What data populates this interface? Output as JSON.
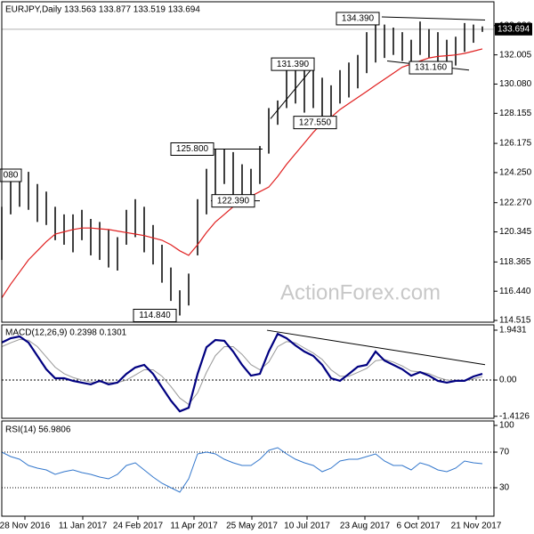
{
  "chart_data": [
    {
      "type": "price-bars",
      "title": "EURJPY,Daily 133.563 133.877 133.519 133.694",
      "last_price": {
        "value": 133.694,
        "label": "133.694"
      },
      "watermark": "ActionForex.com",
      "xlim": [
        0,
        55.3
      ],
      "xticks": [
        {
          "value": 2.6,
          "label": "28 Nov 2016"
        },
        {
          "value": 9.1,
          "label": "11 Jan 2017"
        },
        {
          "value": 15.3,
          "label": "24 Feb 2017"
        },
        {
          "value": 21.6,
          "label": "11 Apr 2017"
        },
        {
          "value": 28.1,
          "label": "25 May 2017"
        },
        {
          "value": 34.3,
          "label": "10 Jul 2017"
        },
        {
          "value": 40.8,
          "label": "23 Aug 2017"
        },
        {
          "value": 46.8,
          "label": "6 Oct 2017"
        },
        {
          "value": 53.3,
          "label": "21 Nov 2017"
        }
      ],
      "ylim": [
        114.4,
        135.5
      ],
      "yticks": [
        {
          "value": 114.515,
          "label": "114.515"
        },
        {
          "value": 116.44,
          "label": "116.440"
        },
        {
          "value": 118.365,
          "label": "118.365"
        },
        {
          "value": 120.345,
          "label": "120.345"
        },
        {
          "value": 122.27,
          "label": "122.270"
        },
        {
          "value": 124.25,
          "label": "124.250"
        },
        {
          "value": 126.175,
          "label": "126.175"
        },
        {
          "value": 128.155,
          "label": "128.155"
        },
        {
          "value": 130.08,
          "label": "130.080"
        },
        {
          "value": 132.005,
          "label": "132.005"
        },
        {
          "value": 133.93,
          "label": "133.930"
        }
      ],
      "high": [
        122.0,
        124.2,
        124.5,
        124.3,
        123.5,
        123.0,
        122.0,
        121.5,
        121.5,
        121.8,
        121.2,
        121.0,
        120.5,
        120.0,
        121.8,
        122.5,
        122.0,
        120.8,
        119.5,
        118.0,
        116.5,
        117.6,
        122.5,
        124.5,
        125.8,
        125.8,
        125.6,
        124.8,
        124.5,
        126.0,
        128.5,
        129.0,
        131.2,
        131.39,
        131.0,
        131.0,
        130.5,
        130.0,
        131.0,
        131.5,
        132.0,
        133.5,
        134.39,
        134.0,
        133.8,
        133.5,
        133.0,
        134.2,
        133.7,
        133.5,
        133.0,
        133.2,
        134.1,
        134.0,
        133.877
      ],
      "low": [
        118.5,
        121.5,
        122.0,
        121.8,
        121.0,
        120.8,
        119.8,
        119.5,
        119.0,
        119.8,
        118.8,
        118.5,
        118.0,
        117.8,
        119.5,
        120.0,
        119.0,
        118.2,
        117.0,
        115.8,
        114.84,
        115.5,
        118.8,
        121.5,
        122.8,
        123.5,
        122.8,
        122.4,
        122.39,
        123.5,
        125.5,
        127.4,
        128.5,
        128.8,
        128.2,
        128.5,
        127.55,
        127.6,
        128.8,
        129.2,
        129.8,
        130.8,
        131.5,
        131.8,
        132.0,
        131.6,
        131.16,
        132.0,
        131.8,
        131.5,
        131.4,
        131.3,
        132.2,
        132.8,
        133.519
      ],
      "bar_color": "#000000",
      "ma": {
        "color": "#e02020",
        "values": [
          116.0,
          116.9,
          117.7,
          118.5,
          119.1,
          119.7,
          120.2,
          120.35,
          120.5,
          120.6,
          120.6,
          120.55,
          120.5,
          120.4,
          120.3,
          120.2,
          120.1,
          119.95,
          119.8,
          119.5,
          119.1,
          118.8,
          119.5,
          120.3,
          121.0,
          121.5,
          122.0,
          122.5,
          122.7,
          123.0,
          123.3,
          124.0,
          124.8,
          125.5,
          126.2,
          126.9,
          127.5,
          127.9,
          128.4,
          128.8,
          129.2,
          129.6,
          130.0,
          130.4,
          130.8,
          131.2,
          131.4,
          131.6,
          131.8,
          131.9,
          131.95,
          132.0,
          132.1,
          132.25,
          132.4
        ]
      },
      "trendlines": [
        {
          "x": [
            42.7,
            54.3
          ],
          "y": [
            134.5,
            134.3
          ]
        },
        {
          "x": [
            43.3,
            52.5
          ],
          "y": [
            131.6,
            131.0
          ]
        },
        {
          "x": [
            23.8,
            29.3
          ],
          "y": [
            125.8,
            125.8
          ]
        },
        {
          "x": [
            23.5,
            29.0
          ],
          "y": [
            122.39,
            122.39
          ]
        },
        {
          "x": [
            30.2,
            35.0
          ],
          "y": [
            127.8,
            131.2
          ]
        }
      ],
      "annotations": [
        {
          "label": "134.390",
          "value": 134.39
        },
        {
          "label": "131.390",
          "value": 131.39
        },
        {
          "label": "131.160",
          "value": 131.16
        },
        {
          "label": "127.550",
          "value": 127.55
        },
        {
          "label": "125.800",
          "value": 125.8
        },
        {
          "label": "122.390",
          "value": 122.39
        },
        {
          "label": "114.840",
          "value": 114.84
        },
        {
          "label": "080"
        }
      ]
    },
    {
      "type": "macd",
      "title": "MACD(12,26,9) 0.2398 0.1301",
      "xlim": [
        0,
        55.3
      ],
      "ylim": [
        -1.49,
        2.15
      ],
      "yticks": [
        1.9431,
        {
          "value": 0,
          "label": "0.00"
        },
        -1.4126
      ],
      "series": [
        {
          "color": "#000080",
          "values": [
            1.46,
            1.63,
            1.7,
            1.46,
            0.94,
            0.42,
            0.07,
            0.07,
            -0.03,
            -0.1,
            -0.17,
            -0.03,
            -0.17,
            -0.1,
            0.24,
            0.49,
            0.59,
            0.24,
            -0.28,
            -0.8,
            -1.22,
            -1.08,
            0.24,
            1.28,
            1.56,
            1.53,
            1.11,
            0.59,
            0.17,
            0.24,
            1.11,
            1.8,
            1.63,
            1.35,
            1.11,
            0.94,
            0.59,
            0.07,
            -0.03,
            0.24,
            0.52,
            0.59,
            1.11,
            0.76,
            0.59,
            0.42,
            0.17,
            0.31,
            0.17,
            -0.03,
            -0.1,
            -0.03,
            -0.03,
            0.14,
            0.2398
          ]
        },
        {
          "color": "#999999",
          "values": [
            1.3,
            1.45,
            1.58,
            1.55,
            1.3,
            0.9,
            0.5,
            0.25,
            0.1,
            0.0,
            -0.08,
            -0.08,
            -0.1,
            -0.1,
            0.0,
            0.2,
            0.4,
            0.4,
            0.15,
            -0.25,
            -0.7,
            -0.95,
            -0.5,
            0.3,
            0.95,
            1.3,
            1.3,
            1.0,
            0.6,
            0.4,
            0.7,
            1.3,
            1.5,
            1.45,
            1.25,
            1.05,
            0.8,
            0.4,
            0.15,
            0.15,
            0.3,
            0.45,
            0.75,
            0.8,
            0.7,
            0.55,
            0.35,
            0.32,
            0.25,
            0.1,
            0.0,
            -0.03,
            -0.03,
            0.05,
            0.1301
          ]
        }
      ],
      "trendlines": [
        {
          "x": [
            29.8,
            54.3
          ],
          "y": [
            1.94,
            0.6
          ]
        }
      ]
    },
    {
      "type": "rsi",
      "title": "RSI(14) 56.9806",
      "xlim": [
        0,
        55.3
      ],
      "ylim": [
        -2,
        105
      ],
      "yticks": [
        30,
        70,
        100
      ],
      "levels": [
        30,
        70
      ],
      "color": "#3377cc",
      "values": [
        70,
        65,
        62,
        55,
        52,
        50,
        45,
        48,
        50,
        47,
        45,
        42,
        40,
        45,
        55,
        58,
        50,
        42,
        35,
        30,
        25,
        40,
        68,
        70,
        68,
        62,
        58,
        55,
        55,
        62,
        72,
        75,
        68,
        62,
        58,
        55,
        48,
        52,
        60,
        62,
        62,
        65,
        68,
        60,
        55,
        55,
        50,
        58,
        55,
        50,
        48,
        52,
        60,
        58,
        56.9806
      ]
    }
  ]
}
